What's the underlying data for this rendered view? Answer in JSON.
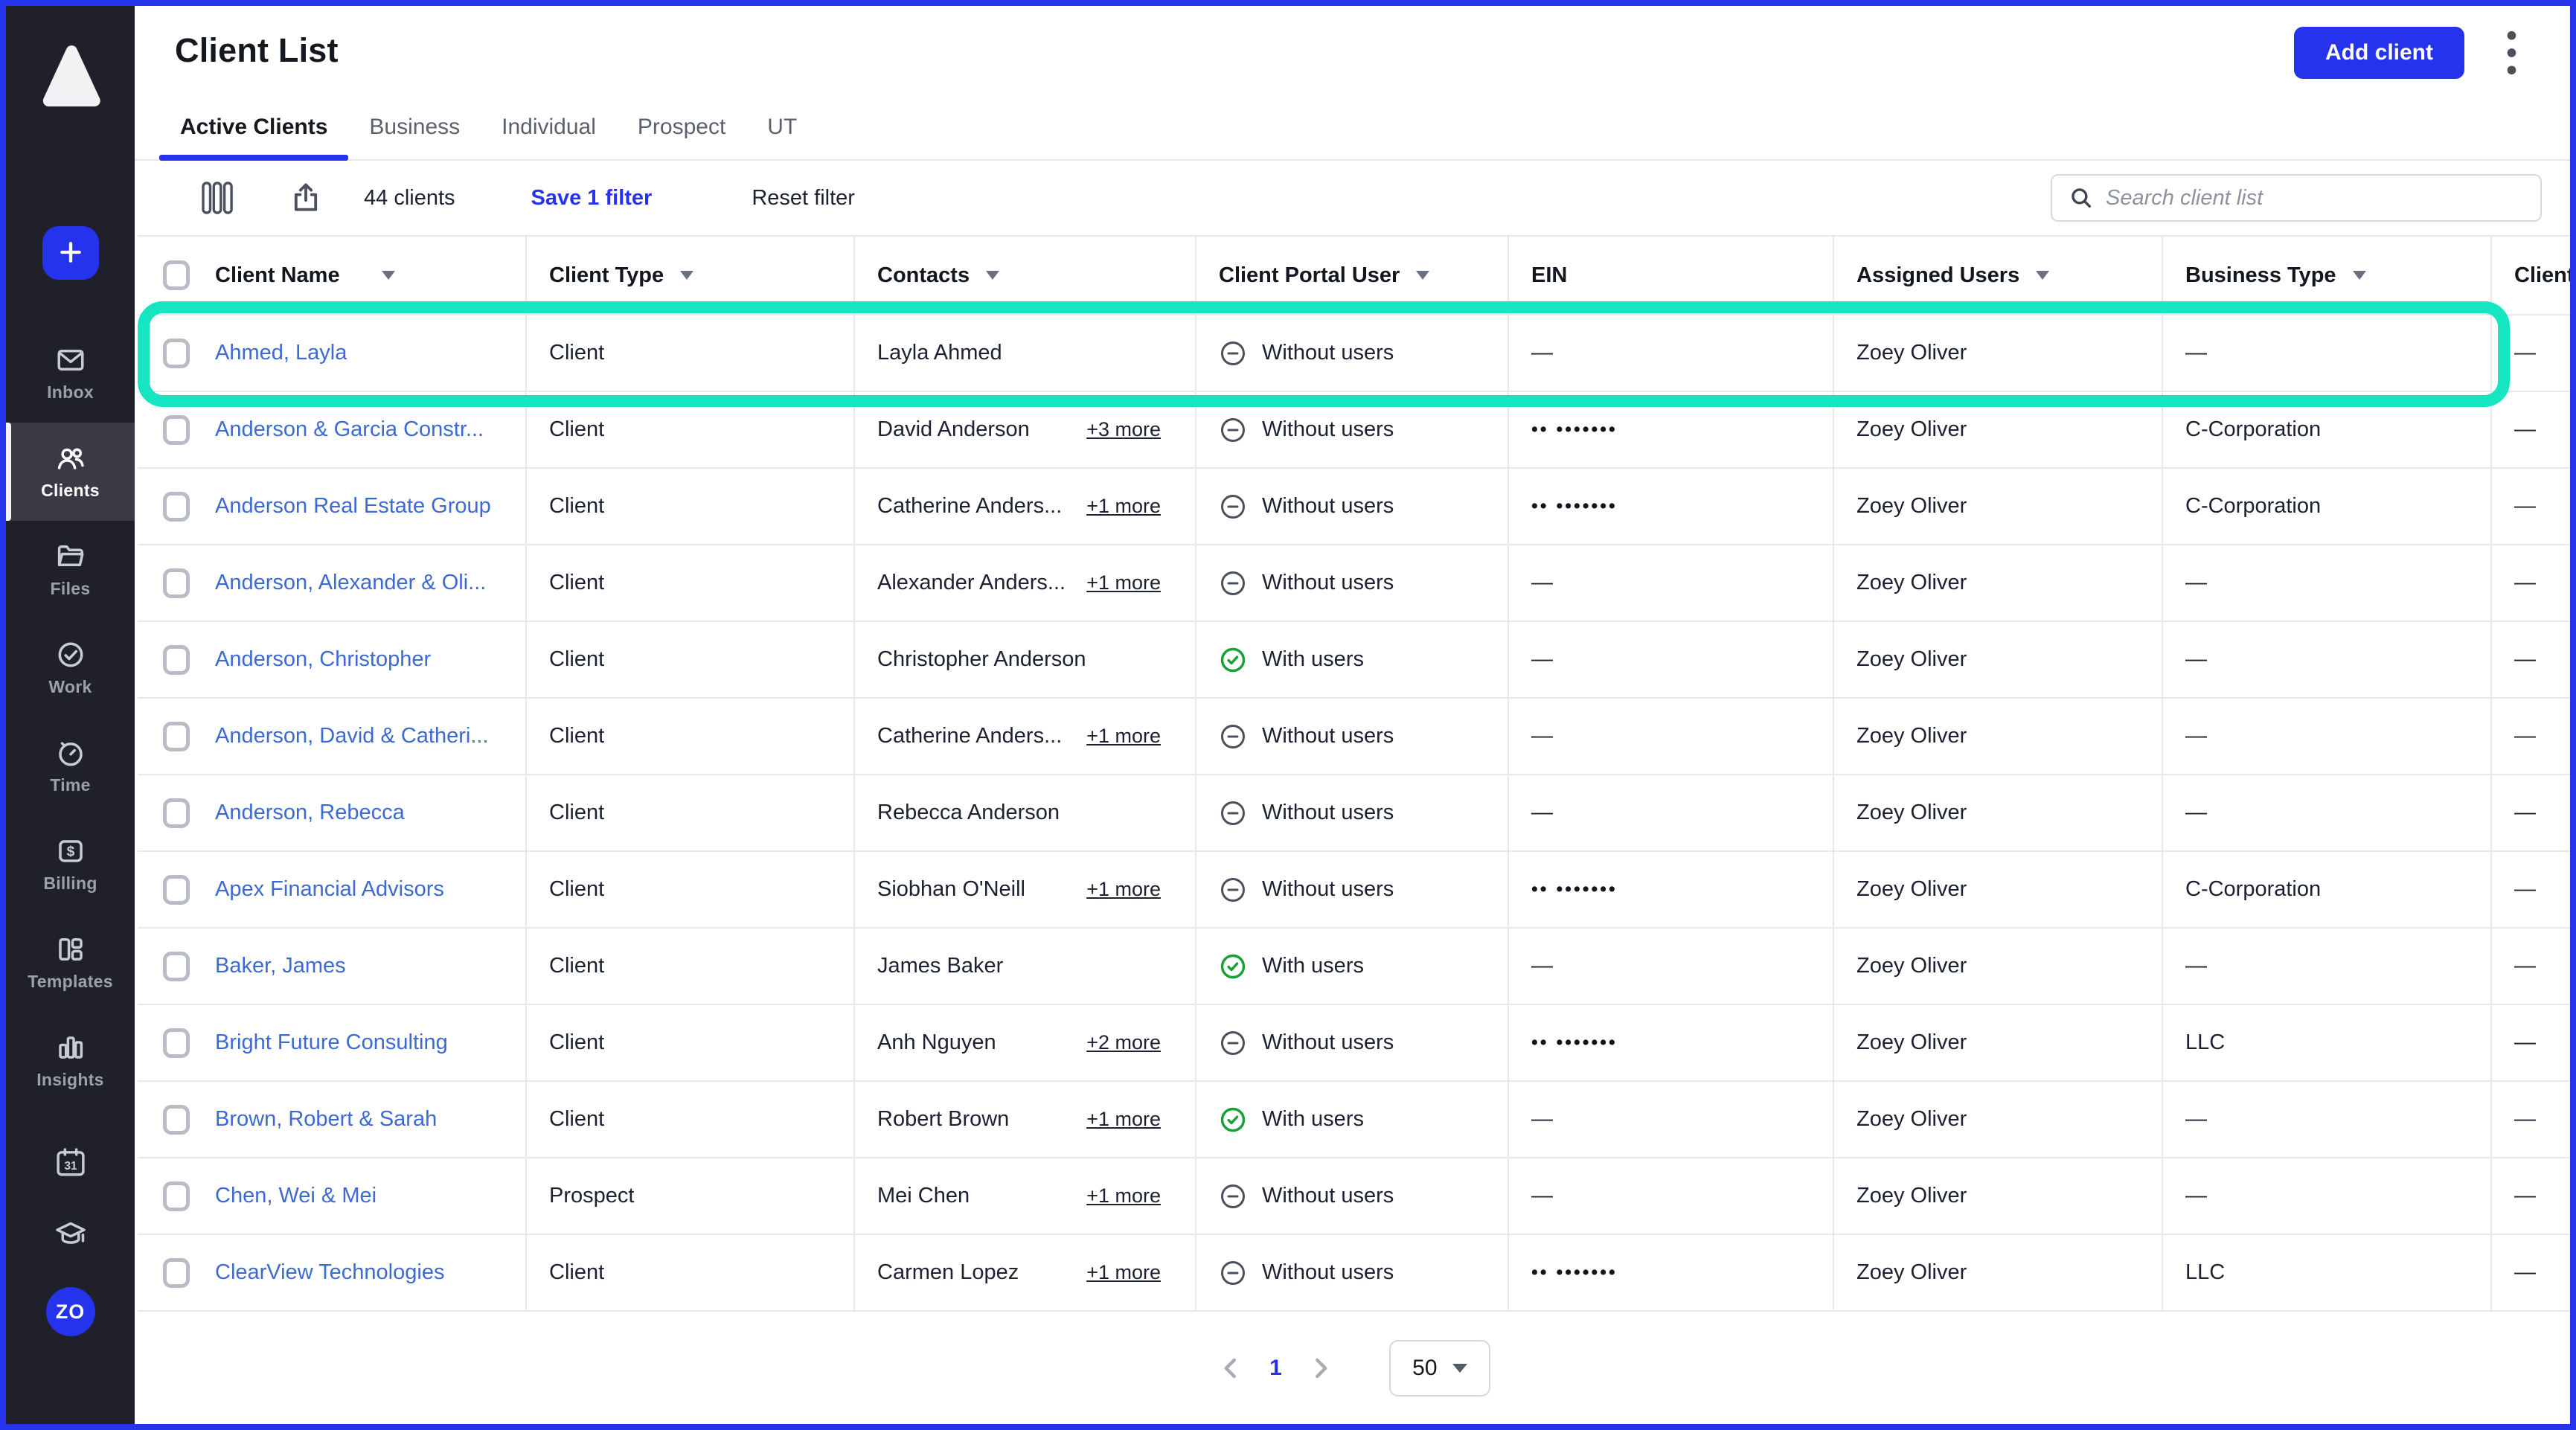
{
  "accent": "#2633EC",
  "highlight_color": "#15E5C1",
  "sidebar": {
    "logo": "canopy-logo",
    "avatar_initials": "ZO",
    "calendar_label": "31",
    "items": [
      {
        "id": "inbox",
        "label": "Inbox",
        "active": false
      },
      {
        "id": "clients",
        "label": "Clients",
        "active": true
      },
      {
        "id": "files",
        "label": "Files",
        "active": false
      },
      {
        "id": "work",
        "label": "Work",
        "active": false
      },
      {
        "id": "time",
        "label": "Time",
        "active": false
      },
      {
        "id": "billing",
        "label": "Billing",
        "active": false
      },
      {
        "id": "templates",
        "label": "Templates",
        "active": false
      },
      {
        "id": "insights",
        "label": "Insights",
        "active": false
      }
    ]
  },
  "header": {
    "title": "Client List",
    "add_button_label": "Add client",
    "tabs": [
      {
        "label": "Active Clients",
        "active": true
      },
      {
        "label": "Business",
        "active": false
      },
      {
        "label": "Individual",
        "active": false
      },
      {
        "label": "Prospect",
        "active": false
      },
      {
        "label": "UT",
        "active": false
      }
    ]
  },
  "toolbar": {
    "count": "44 clients",
    "save_filter": "Save 1 filter",
    "reset_filter": "Reset filter",
    "search_placeholder": "Search client list"
  },
  "table": {
    "columns": [
      {
        "label": "Client Name",
        "sortable": true
      },
      {
        "label": "Client Type",
        "sortable": true
      },
      {
        "label": "Contacts",
        "sortable": true
      },
      {
        "label": "Client Portal User",
        "sortable": true
      },
      {
        "label": "EIN",
        "sortable": false
      },
      {
        "label": "Assigned Users",
        "sortable": true
      },
      {
        "label": "Business Type",
        "sortable": true
      },
      {
        "label": "Client",
        "sortable": false
      }
    ],
    "rows": [
      {
        "name": "Ahmed, Layla",
        "type": "Client",
        "contact": "Layla Ahmed",
        "more": "",
        "portal": "without",
        "portal_label": "Without users",
        "ein": "—",
        "assigned": "Zoey Oliver",
        "business": "—",
        "last": "—",
        "highlighted": true
      },
      {
        "name": "Anderson & Garcia Constr...",
        "type": "Client",
        "contact": "David Anderson",
        "more": "+3 more",
        "portal": "without",
        "portal_label": "Without users",
        "ein": "•• •••••••",
        "assigned": "Zoey Oliver",
        "business": "C-Corporation",
        "last": "—"
      },
      {
        "name": "Anderson Real Estate Group",
        "type": "Client",
        "contact": "Catherine Anders...",
        "more": "+1 more",
        "portal": "without",
        "portal_label": "Without users",
        "ein": "•• •••••••",
        "assigned": "Zoey Oliver",
        "business": "C-Corporation",
        "last": "—"
      },
      {
        "name": "Anderson, Alexander & Oli...",
        "type": "Client",
        "contact": "Alexander Anders...",
        "more": "+1 more",
        "portal": "without",
        "portal_label": "Without users",
        "ein": "—",
        "assigned": "Zoey Oliver",
        "business": "—",
        "last": "—"
      },
      {
        "name": "Anderson, Christopher",
        "type": "Client",
        "contact": "Christopher Anderson",
        "more": "",
        "portal": "with",
        "portal_label": "With users",
        "ein": "—",
        "assigned": "Zoey Oliver",
        "business": "—",
        "last": "—"
      },
      {
        "name": "Anderson, David & Catheri...",
        "type": "Client",
        "contact": "Catherine Anders...",
        "more": "+1 more",
        "portal": "without",
        "portal_label": "Without users",
        "ein": "—",
        "assigned": "Zoey Oliver",
        "business": "—",
        "last": "—"
      },
      {
        "name": "Anderson, Rebecca",
        "type": "Client",
        "contact": "Rebecca Anderson",
        "more": "",
        "portal": "without",
        "portal_label": "Without users",
        "ein": "—",
        "assigned": "Zoey Oliver",
        "business": "—",
        "last": "—"
      },
      {
        "name": "Apex Financial Advisors",
        "type": "Client",
        "contact": "Siobhan O'Neill",
        "more": "+1 more",
        "portal": "without",
        "portal_label": "Without users",
        "ein": "•• •••••••",
        "assigned": "Zoey Oliver",
        "business": "C-Corporation",
        "last": "—"
      },
      {
        "name": "Baker, James",
        "type": "Client",
        "contact": "James Baker",
        "more": "",
        "portal": "with",
        "portal_label": "With users",
        "ein": "—",
        "assigned": "Zoey Oliver",
        "business": "—",
        "last": "—"
      },
      {
        "name": "Bright Future Consulting",
        "type": "Client",
        "contact": "Anh Nguyen",
        "more": "+2 more",
        "portal": "without",
        "portal_label": "Without users",
        "ein": "•• •••••••",
        "assigned": "Zoey Oliver",
        "business": "LLC",
        "last": "—"
      },
      {
        "name": "Brown, Robert & Sarah",
        "type": "Client",
        "contact": "Robert Brown",
        "more": "+1 more",
        "portal": "with",
        "portal_label": "With users",
        "ein": "—",
        "assigned": "Zoey Oliver",
        "business": "—",
        "last": "—"
      },
      {
        "name": "Chen, Wei & Mei",
        "type": "Prospect",
        "contact": "Mei Chen",
        "more": "+1 more",
        "portal": "without",
        "portal_label": "Without users",
        "ein": "—",
        "assigned": "Zoey Oliver",
        "business": "—",
        "last": "—"
      },
      {
        "name": "ClearView Technologies",
        "type": "Client",
        "contact": "Carmen Lopez",
        "more": "+1 more",
        "portal": "without",
        "portal_label": "Without users",
        "ein": "•• •••••••",
        "assigned": "Zoey Oliver",
        "business": "LLC",
        "last": "—"
      }
    ]
  },
  "pagination": {
    "page": "1",
    "page_size": "50"
  }
}
